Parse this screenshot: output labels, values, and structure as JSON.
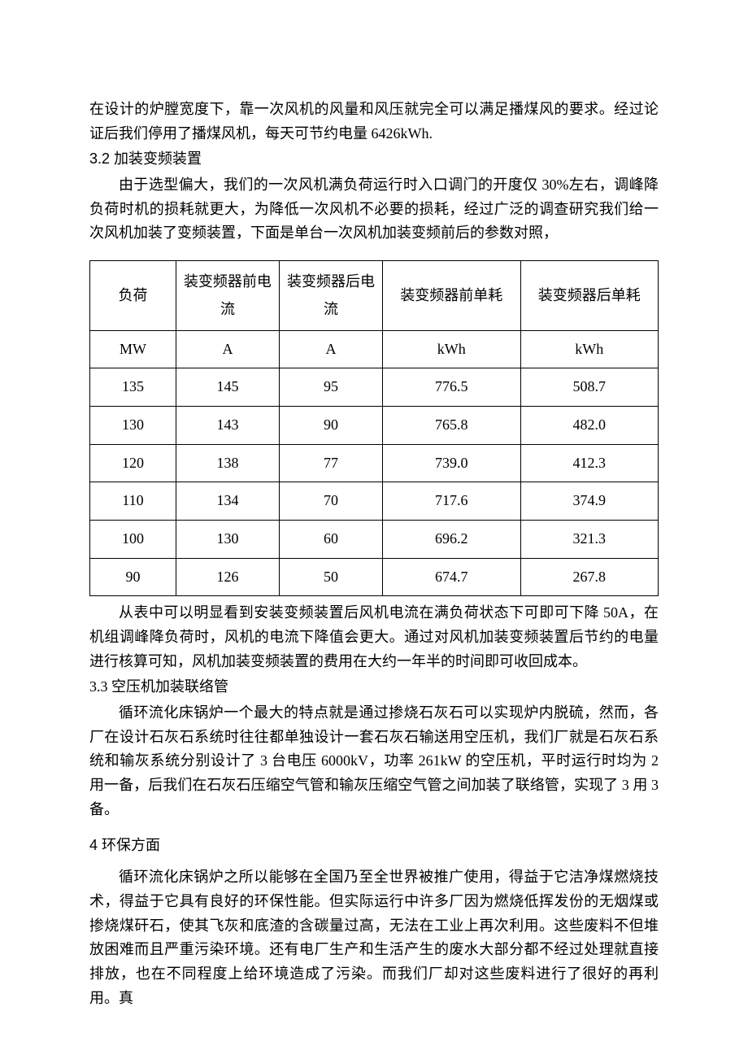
{
  "para1": "在设计的炉膛宽度下，靠一次风机的风量和风压就完全可以满足播煤风的要求。经过论证后我们停用了播煤风机，每天可节约电量 6426kWh.",
  "heading32": "3.2  加装变频装置",
  "para32": "由于选型偏大，我们的一次风机满负荷运行时入口调门的开度仅 30%左右，调峰降负荷时机的损耗就更大，为降低一次风机不必要的损耗，经过广泛的调查研究我们给一次风机加装了变频装置，下面是单台一次风机加装变频前后的参数对照，",
  "table": {
    "headers": [
      "负荷",
      "装变频器前电流",
      "装变频器后电流",
      "装变频器前单耗",
      "装变频器后单耗"
    ],
    "units": [
      "MW",
      "A",
      "A",
      "kWh",
      "kWh"
    ],
    "rows": [
      [
        "135",
        "145",
        "95",
        "776.5",
        "508.7"
      ],
      [
        "130",
        "143",
        "90",
        "765.8",
        "482.0"
      ],
      [
        "120",
        "138",
        "77",
        "739.0",
        "412.3"
      ],
      [
        "110",
        "134",
        "70",
        "717.6",
        "374.9"
      ],
      [
        "100",
        "130",
        "60",
        "696.2",
        "321.3"
      ],
      [
        "90",
        "126",
        "50",
        "674.7",
        "267.8"
      ]
    ]
  },
  "para_after_table": "从表中可以明显看到安装变频装置后风机电流在满负荷状态下可即可下降 50A，在机组调峰降负荷时，风机的电流下降值会更大。通过对风机加装变频装置后节约的电量进行核算可知，风机加装变频装置的费用在大约一年半的时间即可收回成本。",
  "heading33": "3.3  空压机加装联络管",
  "para33": "循环流化床锅炉一个最大的特点就是通过掺烧石灰石可以实现炉内脱硫，然而，各厂在设计石灰石系统时往往都单独设计一套石灰石输送用空压机，我们厂就是石灰石系统和输灰系统分别设计了 3 台电压 6000kV，功率 261kW 的空压机，平时运行时均为 2 用一备，后我们在石灰石压缩空气管和输灰压缩空气管之间加装了联络管，实现了 3 用 3 备。",
  "heading4": "4  环保方面",
  "para4": "循环流化床锅炉之所以能够在全国乃至全世界被推广使用，得益于它洁净煤燃烧技术，得益于它具有良好的环保性能。但实际运行中许多厂因为燃烧低挥发份的无烟煤或掺烧煤矸石，使其飞灰和底渣的含碳量过高，无法在工业上再次利用。这些废料不但堆放困难而且严重污染环境。还有电厂生产和生活产生的废水大部分都不经过处理就直接排放，也在不同程度上给环境造成了污染。而我们厂却对这些废料进行了很好的再利用。真"
}
